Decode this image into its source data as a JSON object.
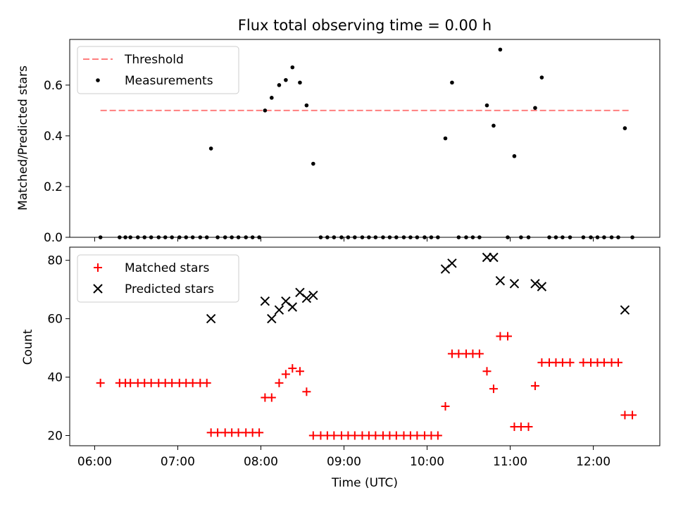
{
  "title": "Flux total observing time = 0.00 h",
  "colors": {
    "threshold": "#ff7f7f",
    "measurement": "#000000",
    "matched": "#ff0000",
    "predicted": "#000000"
  },
  "chart_data": [
    {
      "type": "scatter",
      "ylabel": "Matched/Predicted stars",
      "ylim": [
        0,
        0.78
      ],
      "xlim": [
        5.7,
        12.8
      ],
      "yticks": [
        {
          "v": 0.0,
          "label": "0.0"
        },
        {
          "v": 0.2,
          "label": "0.2"
        },
        {
          "v": 0.4,
          "label": "0.4"
        },
        {
          "v": 0.6,
          "label": "0.6"
        }
      ],
      "legend": {
        "placement": "upper-left",
        "entries": [
          {
            "label": "Threshold",
            "kind": "dash",
            "color": "#ff7f7f"
          },
          {
            "label": "Measurements",
            "kind": "dot",
            "color": "#000000"
          }
        ]
      },
      "threshold": {
        "value": 0.5,
        "x_start": 6.07,
        "x_end": 12.43
      },
      "measurements": [
        [
          6.07,
          0
        ],
        [
          6.3,
          0
        ],
        [
          6.37,
          0
        ],
        [
          6.43,
          0
        ],
        [
          6.52,
          0
        ],
        [
          6.6,
          0
        ],
        [
          6.68,
          0
        ],
        [
          6.77,
          0
        ],
        [
          6.85,
          0
        ],
        [
          6.93,
          0
        ],
        [
          7.02,
          0
        ],
        [
          7.1,
          0
        ],
        [
          7.18,
          0
        ],
        [
          7.27,
          0
        ],
        [
          7.35,
          0
        ],
        [
          7.4,
          0.35
        ],
        [
          7.48,
          0
        ],
        [
          7.57,
          0
        ],
        [
          7.65,
          0
        ],
        [
          7.73,
          0
        ],
        [
          7.82,
          0
        ],
        [
          7.9,
          0
        ],
        [
          7.98,
          0
        ],
        [
          8.05,
          0.5
        ],
        [
          8.13,
          0.55
        ],
        [
          8.22,
          0.6
        ],
        [
          8.3,
          0.62
        ],
        [
          8.38,
          0.67
        ],
        [
          8.47,
          0.61
        ],
        [
          8.55,
          0.52
        ],
        [
          8.63,
          0.29
        ],
        [
          8.72,
          0
        ],
        [
          8.8,
          0
        ],
        [
          8.88,
          0
        ],
        [
          8.97,
          0
        ],
        [
          9.05,
          0
        ],
        [
          9.13,
          0
        ],
        [
          9.22,
          0
        ],
        [
          9.3,
          0
        ],
        [
          9.38,
          0
        ],
        [
          9.47,
          0
        ],
        [
          9.55,
          0
        ],
        [
          9.63,
          0
        ],
        [
          9.72,
          0
        ],
        [
          9.8,
          0
        ],
        [
          9.88,
          0
        ],
        [
          9.97,
          0
        ],
        [
          10.05,
          0
        ],
        [
          10.13,
          0
        ],
        [
          10.22,
          0.39
        ],
        [
          10.3,
          0.61
        ],
        [
          10.38,
          0
        ],
        [
          10.47,
          0
        ],
        [
          10.55,
          0
        ],
        [
          10.63,
          0
        ],
        [
          10.72,
          0.52
        ],
        [
          10.8,
          0.44
        ],
        [
          10.88,
          0.74
        ],
        [
          10.97,
          0
        ],
        [
          11.05,
          0.32
        ],
        [
          11.13,
          0
        ],
        [
          11.22,
          0
        ],
        [
          11.3,
          0.51
        ],
        [
          11.38,
          0.63
        ],
        [
          11.47,
          0
        ],
        [
          11.55,
          0
        ],
        [
          11.63,
          0
        ],
        [
          11.72,
          0
        ],
        [
          11.88,
          0
        ],
        [
          11.97,
          0
        ],
        [
          12.05,
          0
        ],
        [
          12.13,
          0
        ],
        [
          12.22,
          0
        ],
        [
          12.3,
          0
        ],
        [
          12.38,
          0.43
        ],
        [
          12.47,
          0
        ]
      ]
    },
    {
      "type": "scatter",
      "xlabel": "Time (UTC)",
      "ylabel": "Count",
      "ylim": [
        16.5,
        84.5
      ],
      "xlim": [
        5.7,
        12.8
      ],
      "xticks": [
        {
          "v": 6,
          "label": "06:00"
        },
        {
          "v": 7,
          "label": "07:00"
        },
        {
          "v": 8,
          "label": "08:00"
        },
        {
          "v": 9,
          "label": "09:00"
        },
        {
          "v": 10,
          "label": "10:00"
        },
        {
          "v": 11,
          "label": "11:00"
        },
        {
          "v": 12,
          "label": "12:00"
        }
      ],
      "yticks": [
        {
          "v": 20,
          "label": "20"
        },
        {
          "v": 40,
          "label": "40"
        },
        {
          "v": 60,
          "label": "60"
        },
        {
          "v": 80,
          "label": "80"
        }
      ],
      "legend": {
        "placement": "upper-left",
        "entries": [
          {
            "label": "Matched stars",
            "kind": "plus",
            "color": "#ff0000"
          },
          {
            "label": "Predicted stars",
            "kind": "cross",
            "color": "#000000"
          }
        ]
      },
      "series": [
        {
          "name": "Matched stars",
          "marker": "plus",
          "color": "#ff0000",
          "points": [
            [
              6.07,
              38
            ],
            [
              6.3,
              38
            ],
            [
              6.37,
              38
            ],
            [
              6.43,
              38
            ],
            [
              6.52,
              38
            ],
            [
              6.6,
              38
            ],
            [
              6.68,
              38
            ],
            [
              6.77,
              38
            ],
            [
              6.85,
              38
            ],
            [
              6.93,
              38
            ],
            [
              7.02,
              38
            ],
            [
              7.1,
              38
            ],
            [
              7.18,
              38
            ],
            [
              7.27,
              38
            ],
            [
              7.35,
              38
            ],
            [
              7.4,
              21
            ],
            [
              7.48,
              21
            ],
            [
              7.57,
              21
            ],
            [
              7.65,
              21
            ],
            [
              7.73,
              21
            ],
            [
              7.82,
              21
            ],
            [
              7.9,
              21
            ],
            [
              7.98,
              21
            ],
            [
              8.05,
              33
            ],
            [
              8.13,
              33
            ],
            [
              8.22,
              38
            ],
            [
              8.3,
              41
            ],
            [
              8.38,
              43
            ],
            [
              8.47,
              42
            ],
            [
              8.55,
              35
            ],
            [
              8.63,
              20
            ],
            [
              8.72,
              20
            ],
            [
              8.8,
              20
            ],
            [
              8.88,
              20
            ],
            [
              8.97,
              20
            ],
            [
              9.05,
              20
            ],
            [
              9.13,
              20
            ],
            [
              9.22,
              20
            ],
            [
              9.3,
              20
            ],
            [
              9.38,
              20
            ],
            [
              9.47,
              20
            ],
            [
              9.55,
              20
            ],
            [
              9.63,
              20
            ],
            [
              9.72,
              20
            ],
            [
              9.8,
              20
            ],
            [
              9.88,
              20
            ],
            [
              9.97,
              20
            ],
            [
              10.05,
              20
            ],
            [
              10.13,
              20
            ],
            [
              10.22,
              30
            ],
            [
              10.3,
              48
            ],
            [
              10.38,
              48
            ],
            [
              10.47,
              48
            ],
            [
              10.55,
              48
            ],
            [
              10.63,
              48
            ],
            [
              10.72,
              42
            ],
            [
              10.8,
              36
            ],
            [
              10.88,
              54
            ],
            [
              10.97,
              54
            ],
            [
              11.05,
              23
            ],
            [
              11.13,
              23
            ],
            [
              11.22,
              23
            ],
            [
              11.3,
              37
            ],
            [
              11.38,
              45
            ],
            [
              11.47,
              45
            ],
            [
              11.55,
              45
            ],
            [
              11.63,
              45
            ],
            [
              11.72,
              45
            ],
            [
              11.88,
              45
            ],
            [
              11.97,
              45
            ],
            [
              12.05,
              45
            ],
            [
              12.13,
              45
            ],
            [
              12.22,
              45
            ],
            [
              12.3,
              45
            ],
            [
              12.38,
              27
            ],
            [
              12.47,
              27
            ]
          ]
        },
        {
          "name": "Predicted stars",
          "marker": "cross",
          "color": "#000000",
          "points": [
            [
              7.4,
              60
            ],
            [
              8.05,
              66
            ],
            [
              8.13,
              60
            ],
            [
              8.22,
              63
            ],
            [
              8.3,
              66
            ],
            [
              8.38,
              64
            ],
            [
              8.47,
              69
            ],
            [
              8.55,
              67
            ],
            [
              8.63,
              68
            ],
            [
              10.22,
              77
            ],
            [
              10.3,
              79
            ],
            [
              10.72,
              81
            ],
            [
              10.8,
              81
            ],
            [
              10.88,
              73
            ],
            [
              11.05,
              72
            ],
            [
              11.3,
              72
            ],
            [
              11.38,
              71
            ],
            [
              12.38,
              63
            ]
          ]
        }
      ]
    }
  ]
}
